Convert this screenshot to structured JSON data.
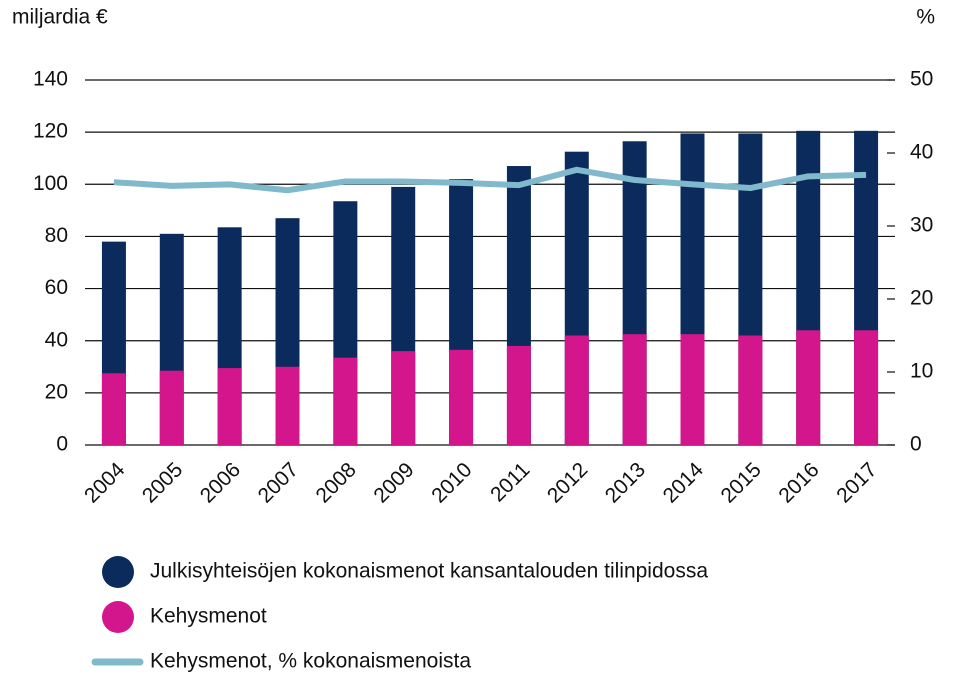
{
  "chart_data": {
    "type": "bar",
    "ylabel": "miljardia €",
    "y2label": "%",
    "categories": [
      "2004",
      "2005",
      "2006",
      "2007",
      "2008",
      "2009",
      "2010",
      "2011",
      "2012",
      "2013",
      "2014",
      "2015",
      "2016",
      "2017"
    ],
    "series": [
      {
        "name": "Julkisyhteisöjen kokonaismenot kansantalouden tilinpidossa",
        "color": "#0b2b5c",
        "type": "bar",
        "values": [
          78,
          81,
          83.5,
          87,
          93.5,
          99,
          102,
          107,
          112.5,
          116.5,
          119.5,
          119.5,
          120.5,
          120.5
        ]
      },
      {
        "name": "Kehysmenot",
        "color": "#d4168c",
        "type": "bar",
        "values": [
          27.5,
          28.5,
          29.5,
          30,
          33.5,
          36,
          36.5,
          38,
          42,
          42.5,
          42.5,
          42,
          44,
          44
        ]
      },
      {
        "name": "Kehysmenot, % kokonaismenoista",
        "color": "#80b8cc",
        "type": "line",
        "axis": "y2",
        "values": [
          36,
          35.5,
          35.7,
          34.9,
          36.1,
          36.1,
          35.9,
          35.6,
          37.7,
          36.3,
          35.7,
          35.2,
          36.8,
          37
        ]
      }
    ],
    "ylim": [
      0,
      140
    ],
    "yticks": [
      0,
      20,
      40,
      60,
      80,
      100,
      120,
      140
    ],
    "y2lim": [
      0,
      50
    ],
    "y2ticks": [
      0,
      10,
      20,
      30,
      40,
      50
    ],
    "grid": true
  }
}
